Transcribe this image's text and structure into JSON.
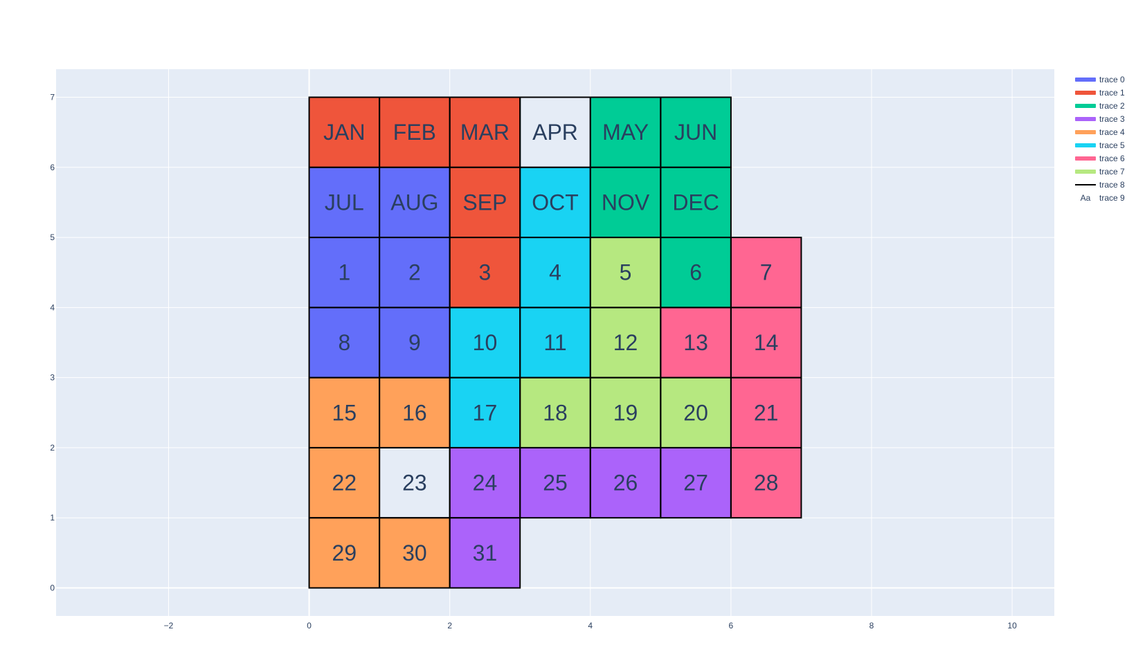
{
  "chart_data": {
    "type": "heatmap",
    "title": "",
    "xlabel": "",
    "ylabel": "",
    "xlim": [
      -3.6,
      10.6
    ],
    "ylim": [
      -0.4,
      7.4
    ],
    "x_ticks": [
      -2,
      0,
      2,
      4,
      6,
      8,
      10
    ],
    "x_tick_labels": [
      "−2",
      "0",
      "2",
      "4",
      "6",
      "8",
      "10"
    ],
    "y_ticks": [
      0,
      1,
      2,
      3,
      4,
      5,
      6,
      7
    ],
    "y_tick_labels": [
      "0",
      "1",
      "2",
      "3",
      "4",
      "5",
      "6",
      "7"
    ],
    "grid": true,
    "legend_position": "top-right",
    "background_color": "#e5ecf6",
    "empty_cell_color": "#e5ecf6",
    "outline_color": "#000000",
    "series": [
      {
        "name": "trace 0",
        "color": "#636efa",
        "cells": [
          [
            0,
            5
          ],
          [
            1,
            5
          ],
          [
            0,
            4
          ],
          [
            1,
            4
          ],
          [
            0,
            3
          ],
          [
            1,
            3
          ]
        ]
      },
      {
        "name": "trace 1",
        "color": "#ef553b",
        "cells": [
          [
            0,
            6
          ],
          [
            1,
            6
          ],
          [
            2,
            6
          ],
          [
            2,
            5
          ],
          [
            2,
            4
          ]
        ]
      },
      {
        "name": "trace 2",
        "color": "#00cc96",
        "cells": [
          [
            4,
            6
          ],
          [
            5,
            6
          ],
          [
            4,
            5
          ],
          [
            5,
            5
          ],
          [
            5,
            4
          ]
        ]
      },
      {
        "name": "trace 3",
        "color": "#ab63fa",
        "cells": [
          [
            2,
            1
          ],
          [
            3,
            1
          ],
          [
            4,
            1
          ],
          [
            5,
            1
          ],
          [
            2,
            0
          ]
        ]
      },
      {
        "name": "trace 4",
        "color": "#ffa15a",
        "cells": [
          [
            0,
            2
          ],
          [
            1,
            2
          ],
          [
            0,
            1
          ],
          [
            0,
            0
          ],
          [
            1,
            0
          ]
        ]
      },
      {
        "name": "trace 5",
        "color": "#19d3f3",
        "cells": [
          [
            3,
            5
          ],
          [
            3,
            4
          ],
          [
            2,
            3
          ],
          [
            3,
            3
          ],
          [
            2,
            2
          ]
        ]
      },
      {
        "name": "trace 6",
        "color": "#ff6692",
        "cells": [
          [
            6,
            4
          ],
          [
            5,
            3
          ],
          [
            6,
            3
          ],
          [
            6,
            2
          ],
          [
            6,
            1
          ]
        ]
      },
      {
        "name": "trace 7",
        "color": "#b6e880",
        "cells": [
          [
            4,
            4
          ],
          [
            4,
            3
          ],
          [
            3,
            2
          ],
          [
            4,
            2
          ],
          [
            5,
            2
          ]
        ]
      },
      {
        "name": "trace 8",
        "color": "#000000",
        "type": "line"
      },
      {
        "name": "trace 9",
        "type": "text",
        "legend_symbol": "Aa"
      }
    ],
    "board_cells": [
      [
        0,
        6
      ],
      [
        1,
        6
      ],
      [
        2,
        6
      ],
      [
        3,
        6
      ],
      [
        4,
        6
      ],
      [
        5,
        6
      ],
      [
        0,
        5
      ],
      [
        1,
        5
      ],
      [
        2,
        5
      ],
      [
        3,
        5
      ],
      [
        4,
        5
      ],
      [
        5,
        5
      ],
      [
        0,
        4
      ],
      [
        1,
        4
      ],
      [
        2,
        4
      ],
      [
        3,
        4
      ],
      [
        4,
        4
      ],
      [
        5,
        4
      ],
      [
        6,
        4
      ],
      [
        0,
        3
      ],
      [
        1,
        3
      ],
      [
        2,
        3
      ],
      [
        3,
        3
      ],
      [
        4,
        3
      ],
      [
        5,
        3
      ],
      [
        6,
        3
      ],
      [
        0,
        2
      ],
      [
        1,
        2
      ],
      [
        2,
        2
      ],
      [
        3,
        2
      ],
      [
        4,
        2
      ],
      [
        5,
        2
      ],
      [
        6,
        2
      ],
      [
        0,
        1
      ],
      [
        1,
        1
      ],
      [
        2,
        1
      ],
      [
        3,
        1
      ],
      [
        4,
        1
      ],
      [
        5,
        1
      ],
      [
        6,
        1
      ],
      [
        0,
        0
      ],
      [
        1,
        0
      ],
      [
        2,
        0
      ]
    ],
    "labels": [
      {
        "text": "JAN",
        "x": 0.5,
        "y": 6.5
      },
      {
        "text": "FEB",
        "x": 1.5,
        "y": 6.5
      },
      {
        "text": "MAR",
        "x": 2.5,
        "y": 6.5
      },
      {
        "text": "APR",
        "x": 3.5,
        "y": 6.5
      },
      {
        "text": "MAY",
        "x": 4.5,
        "y": 6.5
      },
      {
        "text": "JUN",
        "x": 5.5,
        "y": 6.5
      },
      {
        "text": "JUL",
        "x": 0.5,
        "y": 5.5
      },
      {
        "text": "AUG",
        "x": 1.5,
        "y": 5.5
      },
      {
        "text": "SEP",
        "x": 2.5,
        "y": 5.5
      },
      {
        "text": "OCT",
        "x": 3.5,
        "y": 5.5
      },
      {
        "text": "NOV",
        "x": 4.5,
        "y": 5.5
      },
      {
        "text": "DEC",
        "x": 5.5,
        "y": 5.5
      },
      {
        "text": "1",
        "x": 0.5,
        "y": 4.5
      },
      {
        "text": "2",
        "x": 1.5,
        "y": 4.5
      },
      {
        "text": "3",
        "x": 2.5,
        "y": 4.5
      },
      {
        "text": "4",
        "x": 3.5,
        "y": 4.5
      },
      {
        "text": "5",
        "x": 4.5,
        "y": 4.5
      },
      {
        "text": "6",
        "x": 5.5,
        "y": 4.5
      },
      {
        "text": "7",
        "x": 6.5,
        "y": 4.5
      },
      {
        "text": "8",
        "x": 0.5,
        "y": 3.5
      },
      {
        "text": "9",
        "x": 1.5,
        "y": 3.5
      },
      {
        "text": "10",
        "x": 2.5,
        "y": 3.5
      },
      {
        "text": "11",
        "x": 3.5,
        "y": 3.5
      },
      {
        "text": "12",
        "x": 4.5,
        "y": 3.5
      },
      {
        "text": "13",
        "x": 5.5,
        "y": 3.5
      },
      {
        "text": "14",
        "x": 6.5,
        "y": 3.5
      },
      {
        "text": "15",
        "x": 0.5,
        "y": 2.5
      },
      {
        "text": "16",
        "x": 1.5,
        "y": 2.5
      },
      {
        "text": "17",
        "x": 2.5,
        "y": 2.5
      },
      {
        "text": "18",
        "x": 3.5,
        "y": 2.5
      },
      {
        "text": "19",
        "x": 4.5,
        "y": 2.5
      },
      {
        "text": "20",
        "x": 5.5,
        "y": 2.5
      },
      {
        "text": "21",
        "x": 6.5,
        "y": 2.5
      },
      {
        "text": "22",
        "x": 0.5,
        "y": 1.5
      },
      {
        "text": "23",
        "x": 1.5,
        "y": 1.5
      },
      {
        "text": "24",
        "x": 2.5,
        "y": 1.5
      },
      {
        "text": "25",
        "x": 3.5,
        "y": 1.5
      },
      {
        "text": "26",
        "x": 4.5,
        "y": 1.5
      },
      {
        "text": "27",
        "x": 5.5,
        "y": 1.5
      },
      {
        "text": "28",
        "x": 6.5,
        "y": 1.5
      },
      {
        "text": "29",
        "x": 0.5,
        "y": 0.5
      },
      {
        "text": "30",
        "x": 1.5,
        "y": 0.5
      },
      {
        "text": "31",
        "x": 2.5,
        "y": 0.5
      }
    ]
  }
}
